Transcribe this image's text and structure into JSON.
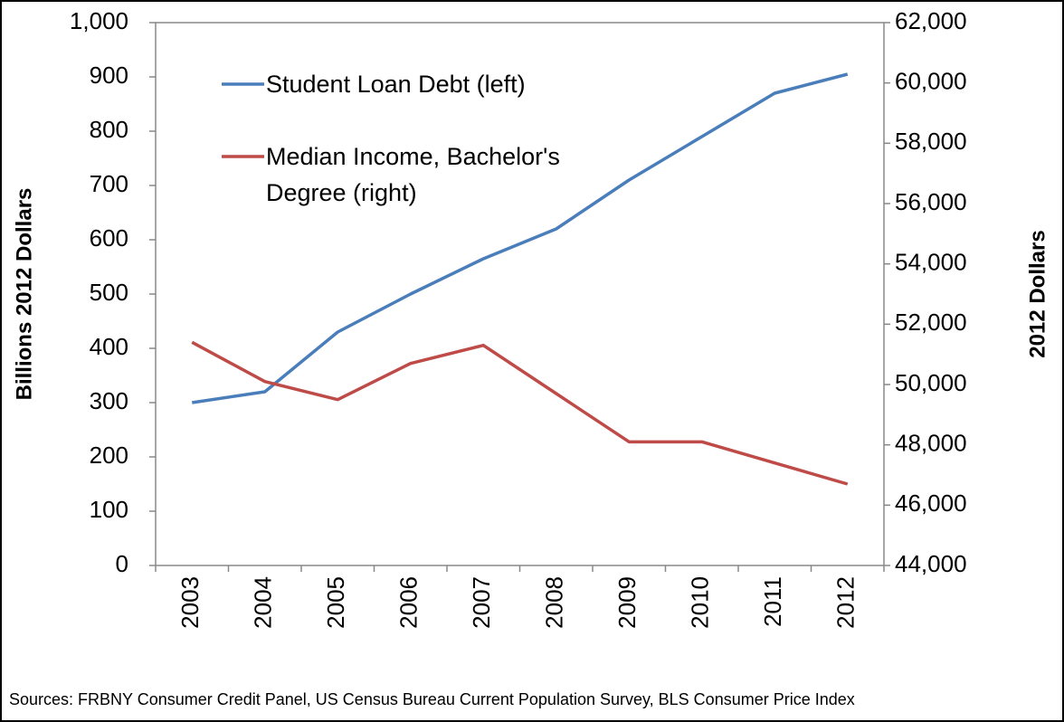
{
  "chart_data": {
    "type": "line",
    "categories": [
      "2003",
      "2004",
      "2005",
      "2006",
      "2007",
      "2008",
      "2009",
      "2010",
      "2011",
      "2012"
    ],
    "series": [
      {
        "name": "Student Loan Debt (left)",
        "color": "#4a7ebb",
        "values": [
          300,
          320,
          430,
          500,
          565,
          620,
          710,
          790,
          870,
          905
        ]
      },
      {
        "name": "Median Income, Bachelor's Degree (right)",
        "color": "#be4b48",
        "axis": "y2",
        "values": [
          51400,
          50100,
          49500,
          50700,
          51300,
          49700,
          48100,
          48100,
          47400,
          46700
        ]
      }
    ],
    "ylabel": "Billions 2012 Dollars",
    "y2label": "2012 Dollars",
    "ylim": [
      0,
      1000
    ],
    "yticks": [
      0,
      100,
      200,
      300,
      400,
      500,
      600,
      700,
      800,
      900,
      {
        "value": 1000,
        "label": "1,000"
      }
    ],
    "y2lim": [
      44000,
      62000
    ],
    "y2ticks": [
      {
        "value": 44000,
        "label": "44,000"
      },
      {
        "value": 46000,
        "label": "46,000"
      },
      {
        "value": 48000,
        "label": "48,000"
      },
      {
        "value": 50000,
        "label": "50,000"
      },
      {
        "value": 52000,
        "label": "52,000"
      },
      {
        "value": 54000,
        "label": "54,000"
      },
      {
        "value": 56000,
        "label": "56,000"
      },
      {
        "value": 58000,
        "label": "58,000"
      },
      {
        "value": 60000,
        "label": "60,000"
      },
      {
        "value": 62000,
        "label": "62,000"
      }
    ],
    "source": "Sources: FRBNY Consumer Credit Panel, US Census Bureau Current Population Survey, BLS Consumer Price Index"
  }
}
